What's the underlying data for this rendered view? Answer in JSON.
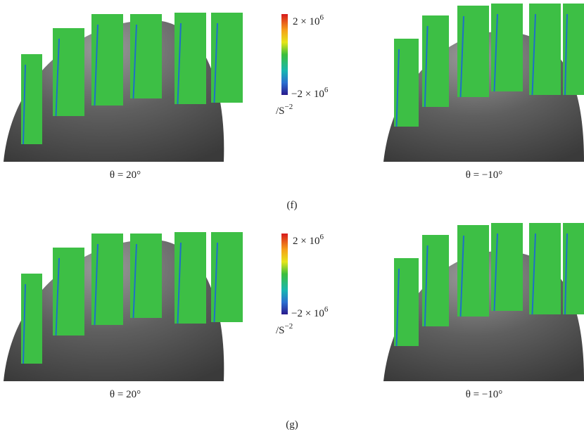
{
  "panels": [
    {
      "label": "(f)",
      "left_caption": "θ = 20°",
      "right_caption": "θ = −10°",
      "colorbar": {
        "max": {
          "base": "2 × 10",
          "exp": "6"
        },
        "min": {
          "base": "−2 × 10",
          "exp": "6"
        },
        "unit": {
          "base": "/S",
          "exp": "−2"
        }
      }
    },
    {
      "label": "(g)",
      "left_caption": "θ = 20°",
      "right_caption": "θ = −10°",
      "colorbar": {
        "max": {
          "base": "2 × 10",
          "exp": "6"
        },
        "min": {
          "base": "−2 × 10",
          "exp": "6"
        },
        "unit": {
          "base": "/S",
          "exp": "−2"
        }
      }
    }
  ]
}
